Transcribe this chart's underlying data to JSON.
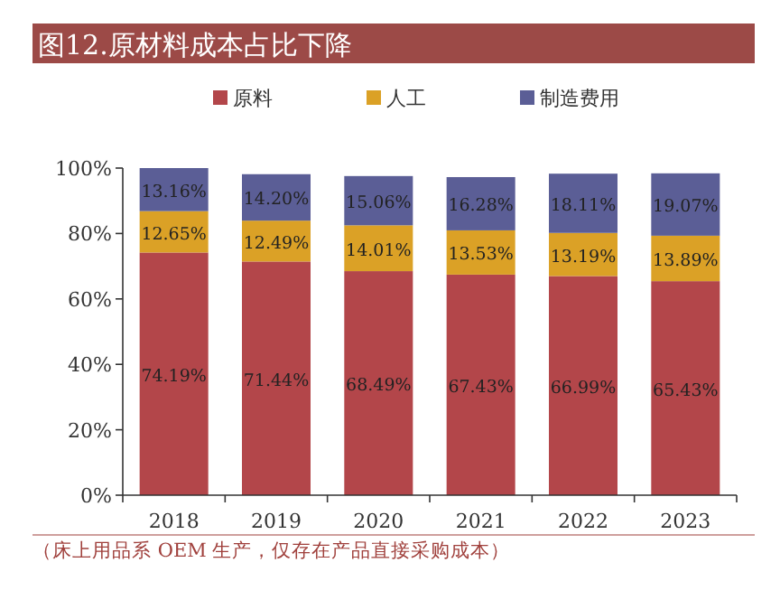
{
  "chart_data": {
    "type": "bar",
    "stacked": true,
    "title": "图12.原材料成本占比下降",
    "categories": [
      "2018",
      "2019",
      "2020",
      "2021",
      "2022",
      "2023"
    ],
    "series": [
      {
        "name": "原料",
        "color": "#b3464a",
        "values": [
          74.19,
          71.44,
          68.49,
          67.43,
          66.99,
          65.43
        ],
        "value_labels": [
          "74.19%",
          "71.44%",
          "68.49%",
          "67.43%",
          "66.99%",
          "65.43%"
        ]
      },
      {
        "name": "人工",
        "color": "#dba126",
        "values": [
          12.65,
          12.49,
          14.01,
          13.53,
          13.19,
          13.89
        ],
        "value_labels": [
          "12.65%",
          "12.49%",
          "14.01%",
          "13.53%",
          "13.19%",
          "13.89%"
        ]
      },
      {
        "name": "制造费用",
        "color": "#5b5e96",
        "values": [
          13.16,
          14.2,
          15.06,
          16.28,
          18.11,
          19.07
        ],
        "value_labels": [
          "13.16%",
          "14.20%",
          "15.06%",
          "16.28%",
          "18.11%",
          "19.07%"
        ]
      }
    ],
    "ylim": [
      0,
      100
    ],
    "yticks": [
      {
        "value": 0,
        "label": "0%"
      },
      {
        "value": 20,
        "label": "20%"
      },
      {
        "value": 40,
        "label": "40%"
      },
      {
        "value": 60,
        "label": "60%"
      },
      {
        "value": 80,
        "label": "80%"
      },
      {
        "value": 100,
        "label": "100%"
      }
    ],
    "legend": "top",
    "grid": false,
    "annotations": [
      "（床上用品系 OEM 生产，仅存在产品直接采购成本）"
    ]
  }
}
